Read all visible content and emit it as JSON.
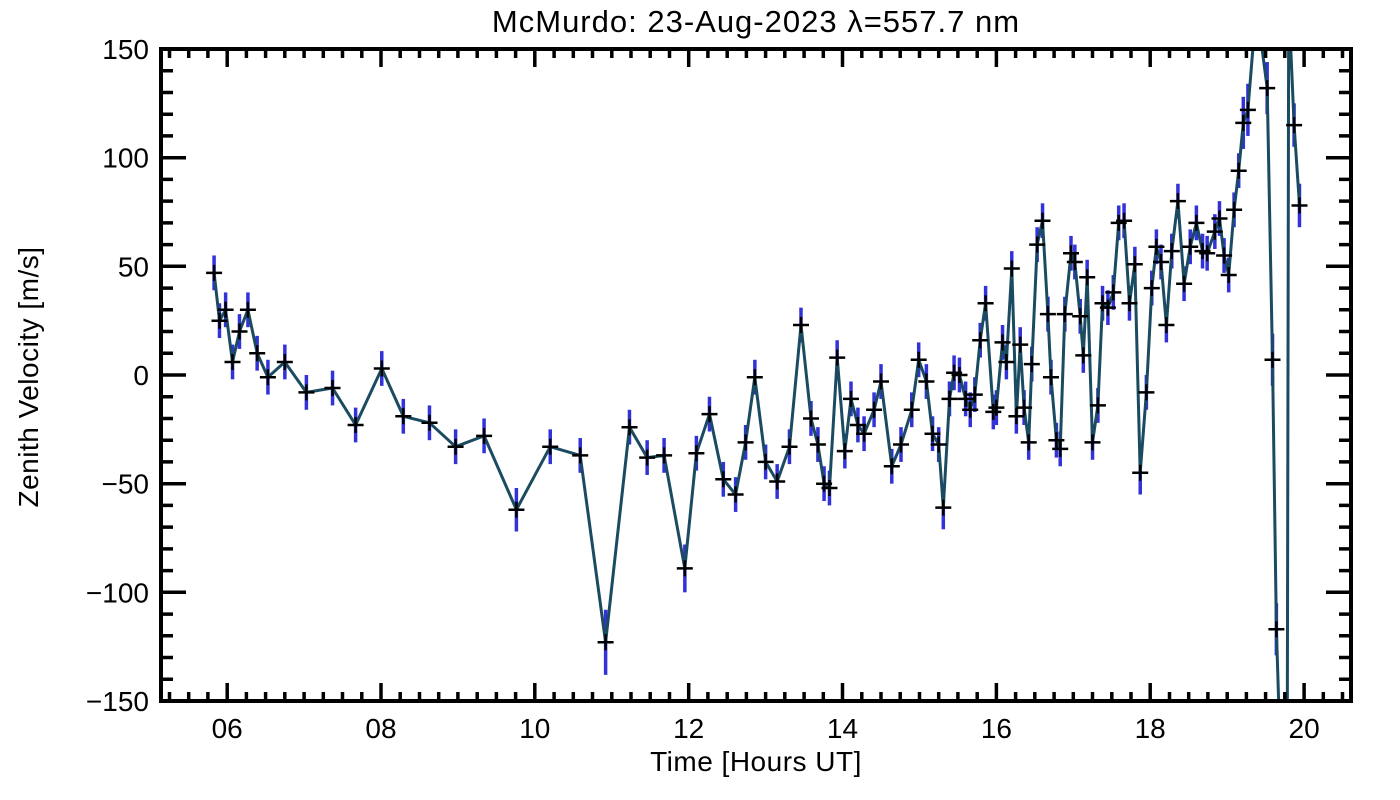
{
  "page": {
    "background": "#ffffff"
  },
  "chart_data": {
    "type": "line",
    "title": "McMurdo: 23-Aug-2023 λ=557.7 nm",
    "xlabel": "Time [Hours UT]",
    "ylabel": "Zenith Velocity [m/s]",
    "xlim": [
      5.14,
      20.61
    ],
    "ylim": [
      -150,
      150
    ],
    "grid": false,
    "legend": "none",
    "marker": "plus",
    "x_ticks": {
      "values": [
        6,
        8,
        10,
        12,
        14,
        16,
        18,
        20
      ],
      "labels": [
        "06",
        "08",
        "10",
        "12",
        "14",
        "16",
        "18",
        "20"
      ],
      "minor_step": 0.25
    },
    "y_ticks": {
      "values": [
        -150,
        -100,
        -50,
        0,
        50,
        100,
        150
      ],
      "labels": [
        "−150",
        "−100",
        "−50",
        "0",
        "50",
        "100",
        "150"
      ],
      "minor_step": 10
    },
    "colors": {
      "line": "#1b4b61",
      "error_bar": "#3232d8",
      "marker": "#000000",
      "axis": "#000000",
      "background": "#ffffff"
    },
    "series": [
      {
        "name": "zenith velocity",
        "x": [
          5.83,
          5.9,
          5.98,
          6.07,
          6.16,
          6.27,
          6.39,
          6.53,
          6.75,
          7.03,
          7.37,
          7.67,
          8.01,
          8.29,
          8.63,
          8.97,
          9.34,
          9.76,
          10.2,
          10.59,
          10.92,
          11.23,
          11.46,
          11.68,
          11.95,
          12.1,
          12.27,
          12.45,
          12.61,
          12.74,
          12.86,
          13.0,
          13.15,
          13.31,
          13.46,
          13.59,
          13.68,
          13.76,
          13.83,
          13.93,
          14.03,
          14.11,
          14.2,
          14.28,
          14.41,
          14.5,
          14.64,
          14.76,
          14.9,
          14.99,
          15.09,
          15.17,
          15.25,
          15.31,
          15.39,
          15.45,
          15.52,
          15.6,
          15.66,
          15.72,
          15.79,
          15.86,
          15.96,
          16.0,
          16.08,
          16.13,
          16.2,
          16.26,
          16.31,
          16.36,
          16.42,
          16.46,
          16.53,
          16.6,
          16.67,
          16.71,
          16.78,
          16.83,
          16.89,
          16.97,
          17.02,
          17.09,
          17.13,
          17.18,
          17.25,
          17.32,
          17.38,
          17.45,
          17.52,
          17.59,
          17.66,
          17.73,
          17.8,
          17.87,
          17.95,
          18.02,
          18.08,
          18.14,
          18.21,
          18.28,
          18.36,
          18.44,
          18.52,
          18.6,
          18.68,
          18.74,
          18.84,
          18.9,
          18.96,
          19.02,
          19.09,
          19.15,
          19.21,
          19.27,
          19.38,
          19.52,
          19.59,
          19.64,
          19.7,
          19.78,
          19.8,
          19.87,
          19.94
        ],
        "y": [
          47,
          25,
          30,
          6,
          20,
          30,
          10,
          -1,
          6,
          -8,
          -6,
          -23,
          3,
          -19,
          -22,
          -33,
          -28,
          -62,
          -33,
          -37,
          -123,
          -24,
          -38,
          -37,
          -89,
          -36,
          -18,
          -48,
          -55,
          -31,
          -1,
          -40,
          -49,
          -33,
          23,
          -20,
          -32,
          -50,
          -52,
          8,
          -35,
          -11,
          -23,
          -27,
          -16,
          -3,
          -42,
          -32,
          -16,
          7,
          -3,
          -27,
          -32,
          -61,
          -11,
          1,
          0,
          -11,
          -16,
          -9,
          16,
          33,
          -17,
          -15,
          15,
          6,
          49,
          -19,
          14,
          -15,
          -31,
          5,
          60,
          71,
          28,
          -1,
          -30,
          -34,
          28,
          56,
          52,
          27,
          9,
          45,
          -31,
          -14,
          33,
          31,
          38,
          70,
          71,
          33,
          51,
          -45,
          -8,
          40,
          59,
          52,
          23,
          57,
          80,
          42,
          59,
          70,
          57,
          56,
          66,
          72,
          55,
          46,
          76,
          94,
          116,
          122,
          170,
          132,
          7,
          -117,
          -185,
          -185,
          172,
          115,
          78
        ],
        "yerr": [
          8,
          8,
          8,
          8,
          8,
          8,
          8,
          8,
          8,
          8,
          8,
          8,
          8,
          8,
          8,
          8,
          8,
          10,
          8,
          8,
          15,
          8,
          8,
          8,
          11,
          8,
          8,
          8,
          8,
          8,
          8,
          8,
          8,
          8,
          8,
          8,
          8,
          8,
          8,
          8,
          8,
          8,
          8,
          8,
          8,
          8,
          8,
          8,
          8,
          8,
          8,
          8,
          8,
          10,
          8,
          8,
          8,
          8,
          8,
          8,
          8,
          8,
          8,
          8,
          8,
          8,
          8,
          8,
          8,
          8,
          8,
          8,
          8,
          8,
          8,
          8,
          8,
          8,
          8,
          8,
          8,
          8,
          8,
          8,
          8,
          8,
          8,
          8,
          8,
          8,
          8,
          8,
          8,
          10,
          8,
          8,
          8,
          8,
          8,
          8,
          8,
          8,
          8,
          8,
          8,
          8,
          8,
          8,
          8,
          8,
          8,
          8,
          12,
          12,
          12,
          12,
          12,
          12,
          12,
          12,
          12,
          10,
          10
        ]
      }
    ]
  }
}
